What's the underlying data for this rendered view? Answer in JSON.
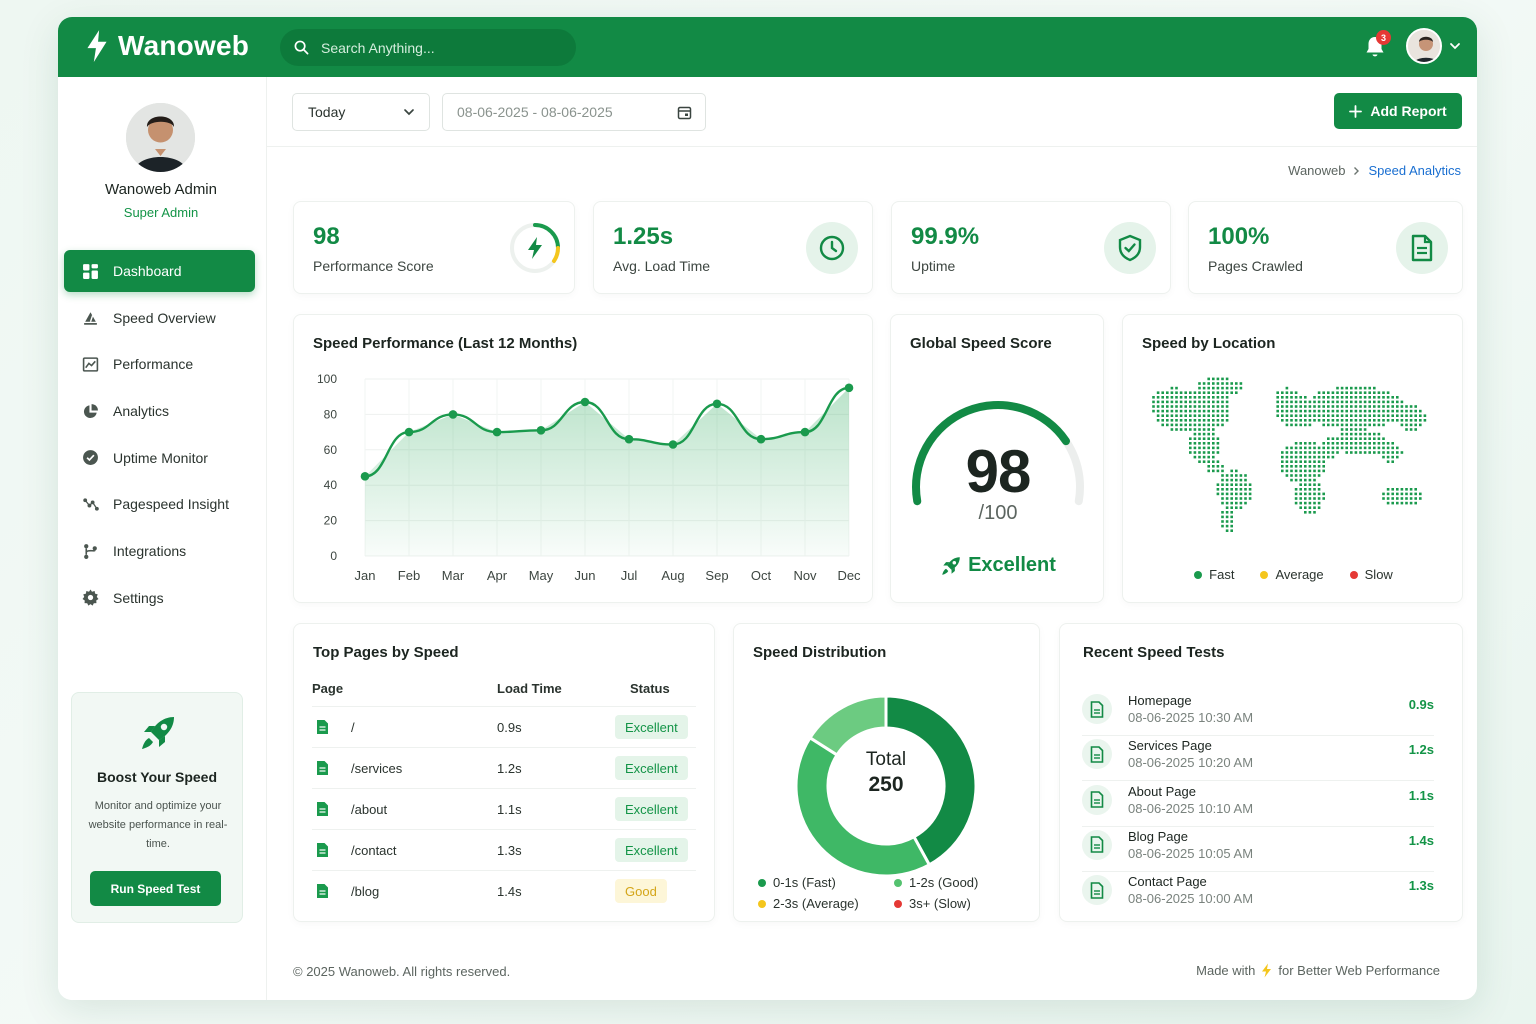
{
  "brand": {
    "name": "Wanoweb",
    "accent": "#128a45"
  },
  "search": {
    "placeholder": "Search Anything..."
  },
  "notifications": {
    "count": "3"
  },
  "profile": {
    "name": "Wanoweb Admin",
    "role": "Super Admin"
  },
  "nav": [
    {
      "label": "Dashboard",
      "icon": "grid-icon",
      "active": true
    },
    {
      "label": "Speed Overview",
      "icon": "speed-icon"
    },
    {
      "label": "Performance",
      "icon": "performance-icon"
    },
    {
      "label": "Analytics",
      "icon": "pie-icon"
    },
    {
      "label": "Uptime Monitor",
      "icon": "check-circle-icon"
    },
    {
      "label": "Pagespeed Insight",
      "icon": "insight-icon"
    },
    {
      "label": "Integrations",
      "icon": "branch-icon"
    },
    {
      "label": "Settings",
      "icon": "gear-icon"
    }
  ],
  "boost": {
    "title": "Boost Your Speed",
    "text": "Monitor and optimize your website performance in real-time.",
    "button": "Run Speed Test"
  },
  "toolbar": {
    "period": "Today",
    "date_range": "08-06-2025 - 08-06-2025",
    "add_report": "Add Report"
  },
  "breadcrumb": {
    "root": "Wanoweb",
    "current": "Speed Analytics"
  },
  "stats": [
    {
      "value": "98",
      "label": "Performance Score",
      "icon": "bolt-icon"
    },
    {
      "value": "1.25s",
      "label": "Avg. Load Time",
      "icon": "clock-icon"
    },
    {
      "value": "99.9%",
      "label": "Uptime",
      "icon": "shield-check-icon"
    },
    {
      "value": "100%",
      "label": "Pages Crawled",
      "icon": "document-icon"
    }
  ],
  "speed_chart": {
    "title": "Speed Performance (Last 12 Months)"
  },
  "chart_data": [
    {
      "type": "area",
      "title": "Speed Performance (Last 12 Months)",
      "categories": [
        "Jan",
        "Feb",
        "Mar",
        "Apr",
        "May",
        "Jun",
        "Jul",
        "Aug",
        "Sep",
        "Oct",
        "Nov",
        "Dec"
      ],
      "values": [
        45,
        70,
        80,
        70,
        71,
        87,
        66,
        63,
        86,
        66,
        70,
        95
      ],
      "yticks": [
        "0",
        "20",
        "40",
        "60",
        "80",
        "100"
      ],
      "ylim": [
        0,
        100
      ],
      "grid": true,
      "color": "#1a9a4d"
    },
    {
      "type": "pie",
      "title": "Speed Distribution",
      "center_label": "Total",
      "center_value": "250",
      "series": [
        {
          "name": "0-1s (Fast)",
          "value": 105,
          "color": "#128a45"
        },
        {
          "name": "1-2s (Good)",
          "value": 105,
          "color": "#3fb866"
        },
        {
          "name": "2-3s (Average)",
          "value": 40,
          "color": "#6ccb81"
        },
        {
          "name": "3s+ (Slow)",
          "value": 0,
          "color": "#e53935"
        }
      ],
      "legend_colors": [
        "#1a9a4d",
        "#54c26f",
        "#f4c61d",
        "#e53935"
      ]
    }
  ],
  "global_score": {
    "title": "Global Speed Score",
    "value": "98",
    "suffix": "/100",
    "rating": "Excellent",
    "score": 98
  },
  "location": {
    "title": "Speed by Location",
    "legend": [
      {
        "label": "Fast",
        "color": "#1a9a4d"
      },
      {
        "label": "Average",
        "color": "#f4c61d"
      },
      {
        "label": "Slow",
        "color": "#e53935"
      }
    ]
  },
  "top_pages": {
    "title": "Top Pages by Speed",
    "headers": [
      "Page",
      "Load Time",
      "Status"
    ],
    "rows": [
      {
        "page": "/",
        "load": "0.9s",
        "status": "Excellent"
      },
      {
        "page": "/services",
        "load": "1.2s",
        "status": "Excellent"
      },
      {
        "page": "/about",
        "load": "1.1s",
        "status": "Excellent"
      },
      {
        "page": "/contact",
        "load": "1.3s",
        "status": "Excellent"
      },
      {
        "page": "/blog",
        "load": "1.4s",
        "status": "Good"
      }
    ]
  },
  "distribution": {
    "title": "Speed Distribution"
  },
  "recent": {
    "title": "Recent Speed Tests",
    "items": [
      {
        "name": "Homepage",
        "time": "08-06-2025 10:30 AM",
        "value": "0.9s"
      },
      {
        "name": "Services Page",
        "time": "08-06-2025 10:20 AM",
        "value": "1.2s"
      },
      {
        "name": "About Page",
        "time": "08-06-2025 10:10 AM",
        "value": "1.1s"
      },
      {
        "name": "Blog Page",
        "time": "08-06-2025 10:05 AM",
        "value": "1.4s"
      },
      {
        "name": "Contact Page",
        "time": "08-06-2025 10:00 AM",
        "value": "1.3s"
      }
    ]
  },
  "footer": {
    "copyright": "© 2025 Wanoweb. All rights reserved.",
    "made_prefix": "Made with",
    "made_suffix": "for Better Web Performance"
  }
}
